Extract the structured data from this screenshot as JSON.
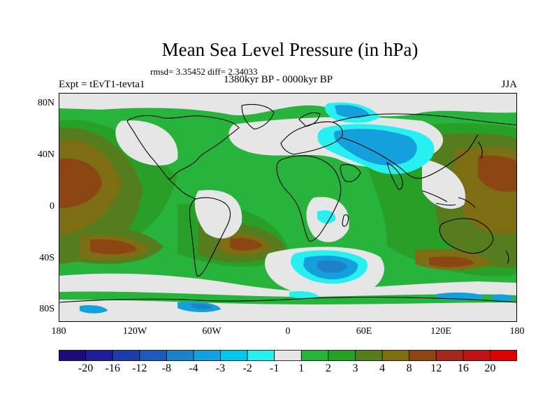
{
  "title": "Mean Sea Level Pressure (in hPa)",
  "stats": "rmsd= 3.35452 diff= 2.34033",
  "subtitle": "1380kyr BP - 0000kyr BP",
  "experiment": "Expt = tEvT1-tevta1",
  "season": "JJA",
  "lat_labels": [
    "80N",
    "40N",
    "0",
    "40S",
    "80S"
  ],
  "lon_labels": [
    "180",
    "120W",
    "60W",
    "0",
    "60E",
    "120E",
    "180"
  ],
  "colorbar": {
    "labels": [
      "-20",
      "-16",
      "-12",
      "-8",
      "-4",
      "-3",
      "-2",
      "-1",
      "1",
      "2",
      "3",
      "4",
      "8",
      "12",
      "16",
      "20"
    ],
    "colors": [
      "#1e0a78",
      "#1e1e96",
      "#1e3caa",
      "#1e5ab9",
      "#1e82c8",
      "#14a0dc",
      "#00c8e6",
      "#28f0f0",
      "#e6e6e6",
      "#28b43c",
      "#28a028",
      "#557d1e",
      "#7d6e14",
      "#8c4614",
      "#a5281e",
      "#be1414",
      "#dc0000"
    ]
  },
  "map_colors": {
    "land_outline": "#000000",
    "neutral": "#e6e6e6",
    "green_light": "#28b43c",
    "green_mid": "#28a028",
    "olive": "#557d1e",
    "brown": "#7d6e14",
    "rust": "#8c4614",
    "blue_light": "#28f0f0",
    "blue_mid": "#14a0dc",
    "blue_dark": "#1e82c8"
  }
}
